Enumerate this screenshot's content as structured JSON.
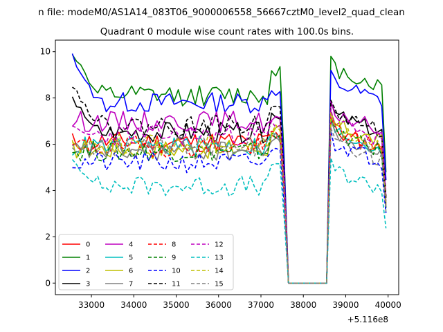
{
  "chart_data": {
    "type": "line",
    "suptitle": "n file: modeM0/AS1A14_083T06_9000006558_56667cztM0_level2_quad_clean",
    "title": "Quadrant 0 module wise count rates with 100.0s bins.",
    "xlabel": "",
    "ylabel": "",
    "offset_text": "+5.116e8",
    "xlim": [
      32150,
      40250
    ],
    "ylim": [
      -0.5,
      10.5
    ],
    "x_ticks": [
      33000,
      34000,
      35000,
      36000,
      37000,
      38000,
      39000,
      40000
    ],
    "x_tick_labels": [
      "33000",
      "34000",
      "35000",
      "36000",
      "37000",
      "38000",
      "39000",
      "40000"
    ],
    "y_ticks": [
      0,
      2,
      4,
      6,
      8,
      10
    ],
    "y_tick_labels": [
      "0",
      "2",
      "4",
      "6",
      "8",
      "10"
    ],
    "grid": false,
    "legend_position": "lower-left",
    "legend_columns": 4,
    "gap_start": 37550,
    "gap_end": 38650,
    "x_start": 32550,
    "x_end": 39950,
    "x_step": 100,
    "series": [
      {
        "name": "0",
        "color": "#ff0000",
        "style": "solid",
        "mean": 6.1,
        "after": 6.0,
        "spike": 6.4,
        "seed": 11
      },
      {
        "name": "1",
        "color": "#008000",
        "style": "solid",
        "mean": 8.1,
        "after": 8.7,
        "spike": 9.2,
        "seed": 12,
        "start": 10.0
      },
      {
        "name": "2",
        "color": "#0000ff",
        "style": "solid",
        "mean": 7.8,
        "after": 8.1,
        "spike": 8.3,
        "seed": 13,
        "start": 9.8
      },
      {
        "name": "3",
        "color": "#000000",
        "style": "solid",
        "mean": 6.5,
        "after": 6.7,
        "spike": 7.3,
        "seed": 14,
        "start": 8.0
      },
      {
        "name": "4",
        "color": "#bf00bf",
        "style": "solid",
        "mean": 7.0,
        "after": 6.8,
        "spike": 7.0,
        "seed": 15
      },
      {
        "name": "5",
        "color": "#00bfbf",
        "style": "solid",
        "mean": 5.9,
        "after": 6.0,
        "spike": 6.3,
        "seed": 16
      },
      {
        "name": "6",
        "color": "#bfbf00",
        "style": "solid",
        "mean": 5.8,
        "after": 6.3,
        "spike": 6.6,
        "seed": 17
      },
      {
        "name": "7",
        "color": "#808080",
        "style": "solid",
        "mean": 5.7,
        "after": 5.9,
        "spike": 6.2,
        "seed": 18
      },
      {
        "name": "8",
        "color": "#ff0000",
        "style": "dashed",
        "mean": 5.9,
        "after": 6.1,
        "spike": 6.5,
        "seed": 19
      },
      {
        "name": "9",
        "color": "#008000",
        "style": "dashed",
        "mean": 5.7,
        "after": 5.9,
        "spike": 6.3,
        "seed": 20
      },
      {
        "name": "10",
        "color": "#0000ff",
        "style": "dashed",
        "mean": 5.2,
        "after": 5.5,
        "spike": 5.9,
        "seed": 21
      },
      {
        "name": "11",
        "color": "#000000",
        "style": "dashed",
        "mean": 6.8,
        "after": 6.8,
        "spike": 7.8,
        "seed": 22,
        "start": 8.6
      },
      {
        "name": "12",
        "color": "#bf00bf",
        "style": "dashed",
        "mean": 6.4,
        "after": 6.4,
        "spike": 6.9,
        "seed": 23
      },
      {
        "name": "13",
        "color": "#00bfbf",
        "style": "dashed",
        "mean": 4.2,
        "after": 4.3,
        "spike": 5.2,
        "seed": 24,
        "start": 5.3
      },
      {
        "name": "14",
        "color": "#bfbf00",
        "style": "dashed",
        "mean": 6.0,
        "after": 6.2,
        "spike": 6.6,
        "seed": 25
      },
      {
        "name": "15",
        "color": "#808080",
        "style": "dashed",
        "mean": 5.9,
        "after": 5.6,
        "spike": 6.3,
        "seed": 26
      }
    ]
  }
}
